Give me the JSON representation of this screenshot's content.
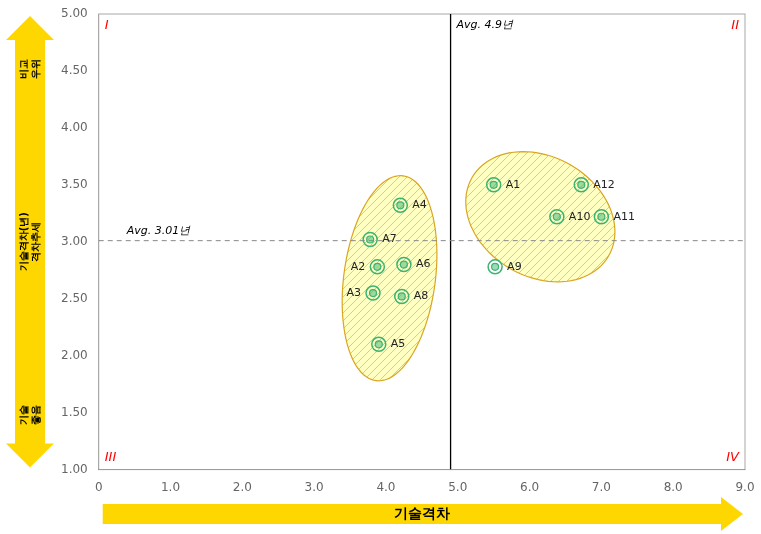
{
  "chart_data": {
    "type": "scatter",
    "x": [
      5.5,
      3.88,
      3.82,
      4.2,
      3.9,
      4.25,
      3.78,
      4.22,
      5.52,
      6.38,
      7.0,
      6.72
    ],
    "values": [
      3.5,
      2.78,
      2.55,
      3.32,
      2.1,
      2.8,
      3.02,
      2.52,
      2.78,
      3.22,
      3.22,
      3.5
    ],
    "point_labels": [
      "A1",
      "A2",
      "A3",
      "A4",
      "A5",
      "A6",
      "A7",
      "A8",
      "A9",
      "A10",
      "A11",
      "A12"
    ],
    "color": "#3CB371",
    "xlim": [
      0,
      9
    ],
    "ylim": [
      1.0,
      5.0
    ],
    "xticks": [
      0,
      {
        "value": 1,
        "label": "1.0"
      },
      {
        "value": 2,
        "label": "2.0"
      },
      {
        "value": 3,
        "label": "3.0"
      },
      {
        "value": 4,
        "label": "4.0"
      },
      {
        "value": 5,
        "label": "5.0"
      },
      {
        "value": 6,
        "label": "6.0"
      },
      {
        "value": 7,
        "label": "7.0"
      },
      {
        "value": 8,
        "label": "8.0"
      },
      {
        "value": 9,
        "label": "9.0"
      }
    ],
    "yticks": [
      {
        "value": 1,
        "label": "1.00"
      },
      {
        "value": 1.5,
        "label": "1.50"
      },
      {
        "value": 2,
        "label": "2.00"
      },
      {
        "value": 2.5,
        "label": "2.50"
      },
      {
        "value": 3,
        "label": "3.00"
      },
      {
        "value": 3.5,
        "label": "3.50"
      },
      {
        "value": 4,
        "label": "4.00"
      },
      {
        "value": 4.5,
        "label": "4.50"
      },
      {
        "value": 5,
        "label": "5.00"
      }
    ],
    "xlabel": "기술격차",
    "ylabel": [
      "비교\n우위",
      "기술격차(년)\n격차추세",
      "기술\n좋음"
    ],
    "arrow_color": "#FFD700",
    "lines": [
      {
        "axis": "x",
        "value": 4.9,
        "label": "Avg. 4.9년",
        "color": "#000000",
        "line_style": "solid"
      },
      {
        "axis": "y",
        "value": 3.01,
        "label": "Avg. 3.01년",
        "color": "#888888",
        "line_style": "dashed"
      }
    ],
    "quadrant_labels": {
      "labels": [
        "I",
        "II",
        "III",
        "IV"
      ],
      "color": "red"
    },
    "ellipses": [
      {
        "center": [
          4.05,
          2.68
        ],
        "width": 1.25,
        "height": 1.85,
        "angle": -18,
        "color": "#FFFF99",
        "edge_color": "#DAA520"
      },
      {
        "center": [
          6.15,
          3.22
        ],
        "width": 2.1,
        "height": 1.1,
        "angle": -10,
        "color": "#FFFF99",
        "edge_color": "#DAA520"
      }
    ],
    "grid": false
  }
}
